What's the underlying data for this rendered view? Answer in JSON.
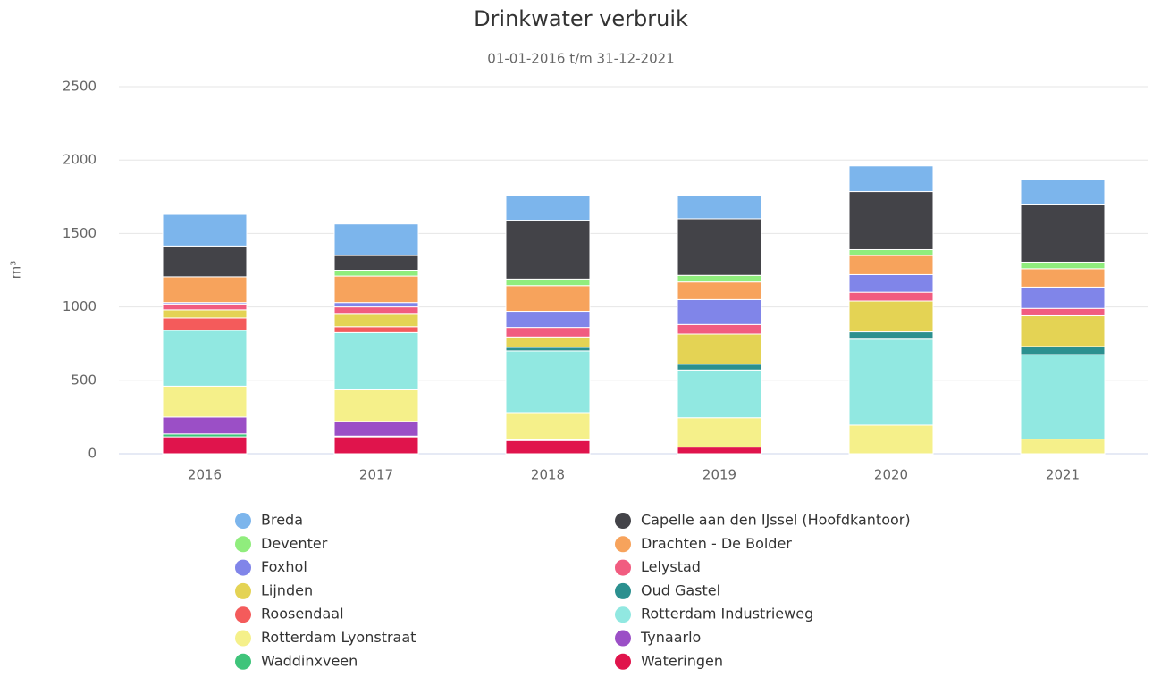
{
  "chart_data": {
    "type": "stacked_bar",
    "title": "Drinkwater verbruik",
    "subtitle": "01-01-2016 t/m 31-12-2021",
    "y_label": "m³",
    "categories": [
      "2016",
      "2017",
      "2018",
      "2019",
      "2020",
      "2021"
    ],
    "ylim": [
      0,
      2500
    ],
    "yticks": [
      0,
      500,
      1000,
      1500,
      2000,
      2500
    ],
    "grid": true,
    "series": [
      {
        "name": "Breda",
        "color": "#7cb5ec",
        "values": [
          215,
          215,
          170,
          160,
          175,
          170
        ]
      },
      {
        "name": "Capelle aan den IJssel (Hoofdkantoor)",
        "color": "#434348",
        "values": [
          210,
          100,
          400,
          385,
          395,
          395
        ]
      },
      {
        "name": "Deventer",
        "color": "#90ed7d",
        "values": [
          0,
          40,
          45,
          45,
          40,
          45
        ]
      },
      {
        "name": "Drachten - De Bolder",
        "color": "#f7a35c",
        "values": [
          175,
          180,
          175,
          120,
          130,
          125
        ]
      },
      {
        "name": "Foxhol",
        "color": "#8085e9",
        "values": [
          10,
          30,
          110,
          170,
          120,
          145
        ]
      },
      {
        "name": "Lelystad",
        "color": "#f15c80",
        "values": [
          40,
          50,
          65,
          65,
          60,
          50
        ]
      },
      {
        "name": "Lijnden",
        "color": "#e4d354",
        "values": [
          55,
          85,
          70,
          205,
          210,
          210
        ]
      },
      {
        "name": "Oud Gastel",
        "color": "#2b908f",
        "values": [
          0,
          0,
          25,
          40,
          50,
          55
        ]
      },
      {
        "name": "Roosendaal",
        "color": "#f45b5b",
        "values": [
          85,
          40,
          0,
          0,
          0,
          0
        ]
      },
      {
        "name": "Rotterdam Industrieweg",
        "color": "#91e8e1",
        "values": [
          380,
          390,
          420,
          325,
          585,
          575
        ]
      },
      {
        "name": "Rotterdam Lyonstraat",
        "color": "#f5f08a",
        "values": [
          210,
          215,
          185,
          200,
          195,
          100
        ]
      },
      {
        "name": "Tynaarlo",
        "color": "#9b4fc6",
        "values": [
          115,
          100,
          0,
          0,
          0,
          0
        ]
      },
      {
        "name": "Waddinxveen",
        "color": "#3fc47a",
        "values": [
          20,
          5,
          5,
          0,
          0,
          0
        ]
      },
      {
        "name": "Wateringen",
        "color": "#e0144c",
        "values": [
          115,
          115,
          90,
          45,
          0,
          0
        ]
      }
    ]
  }
}
